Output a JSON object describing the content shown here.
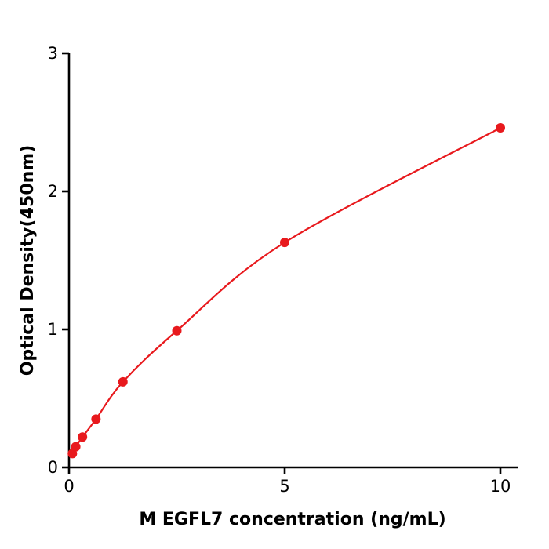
{
  "chart_data": {
    "type": "line",
    "title": "",
    "xlabel": "M  EGFL7 concentration (ng/mL)",
    "ylabel": "Optical Density(450nm)",
    "x": [
      0.078,
      0.156,
      0.3125,
      0.625,
      1.25,
      2.5,
      5,
      10
    ],
    "y": [
      0.1,
      0.15,
      0.22,
      0.35,
      0.62,
      0.99,
      1.63,
      2.46
    ],
    "xlim": [
      0,
      10.4
    ],
    "ylim": [
      0,
      3
    ],
    "xticks": [
      0,
      5,
      10
    ],
    "yticks": [
      0,
      1,
      2,
      3
    ],
    "line_color": "#e8191d",
    "marker_color": "#e8191d",
    "axis_color": "#000000",
    "grid": false,
    "legend_position": "none",
    "marker_radius": 6,
    "line_width": 2.2
  }
}
